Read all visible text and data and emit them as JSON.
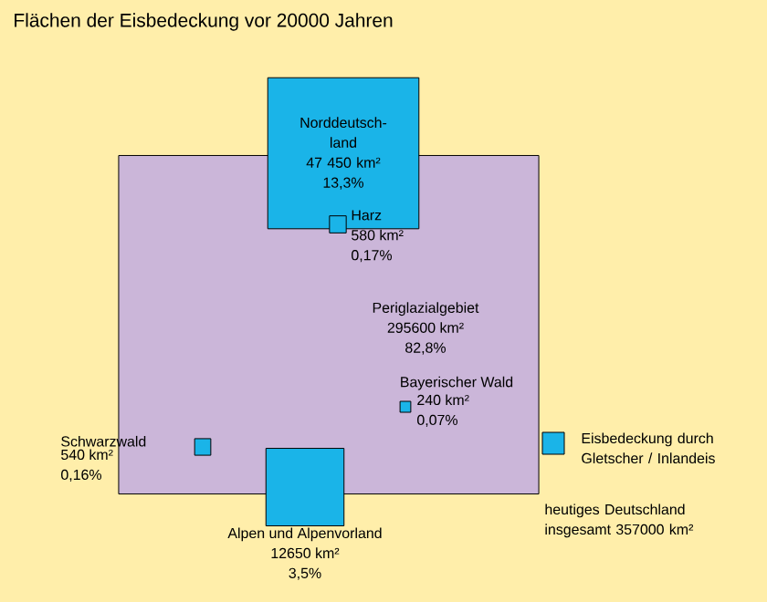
{
  "chart_data": {
    "type": "other",
    "title": "Flächen der Eisbedeckung vor 20000 Jahren",
    "categories": [
      "Periglazialgebiet",
      "Norddeutsch-land",
      "Harz",
      "Bayerischer Wald",
      "Schwarzwald",
      "Alpen und Alpenvorland"
    ],
    "series": [
      {
        "values": [
          295600,
          47450,
          580,
          240,
          540,
          12650
        ],
        "value_labels": [
          "295600 km²",
          "47 450 km²",
          "580 km²",
          "240 km²",
          "540 km²",
          "12650 km²"
        ],
        "colors": [
          "#cbb6d9",
          "#1ab4e8",
          "#1ab4e8",
          "#1ab4e8",
          "#1ab4e8",
          "#1ab4e8"
        ]
      },
      {
        "values": [
          82.8,
          13.3,
          0.17,
          0.07,
          0.16,
          3.5
        ],
        "value_labels": [
          "82,8%",
          "13,3%",
          "0,17%",
          "0,07%",
          "0,16%",
          "3,5%"
        ]
      }
    ],
    "annotations": [
      "Eisbedeckung durch Gletscher / Inlandeis",
      "heutiges Deutschland insgesamt 357000 km²"
    ]
  }
}
